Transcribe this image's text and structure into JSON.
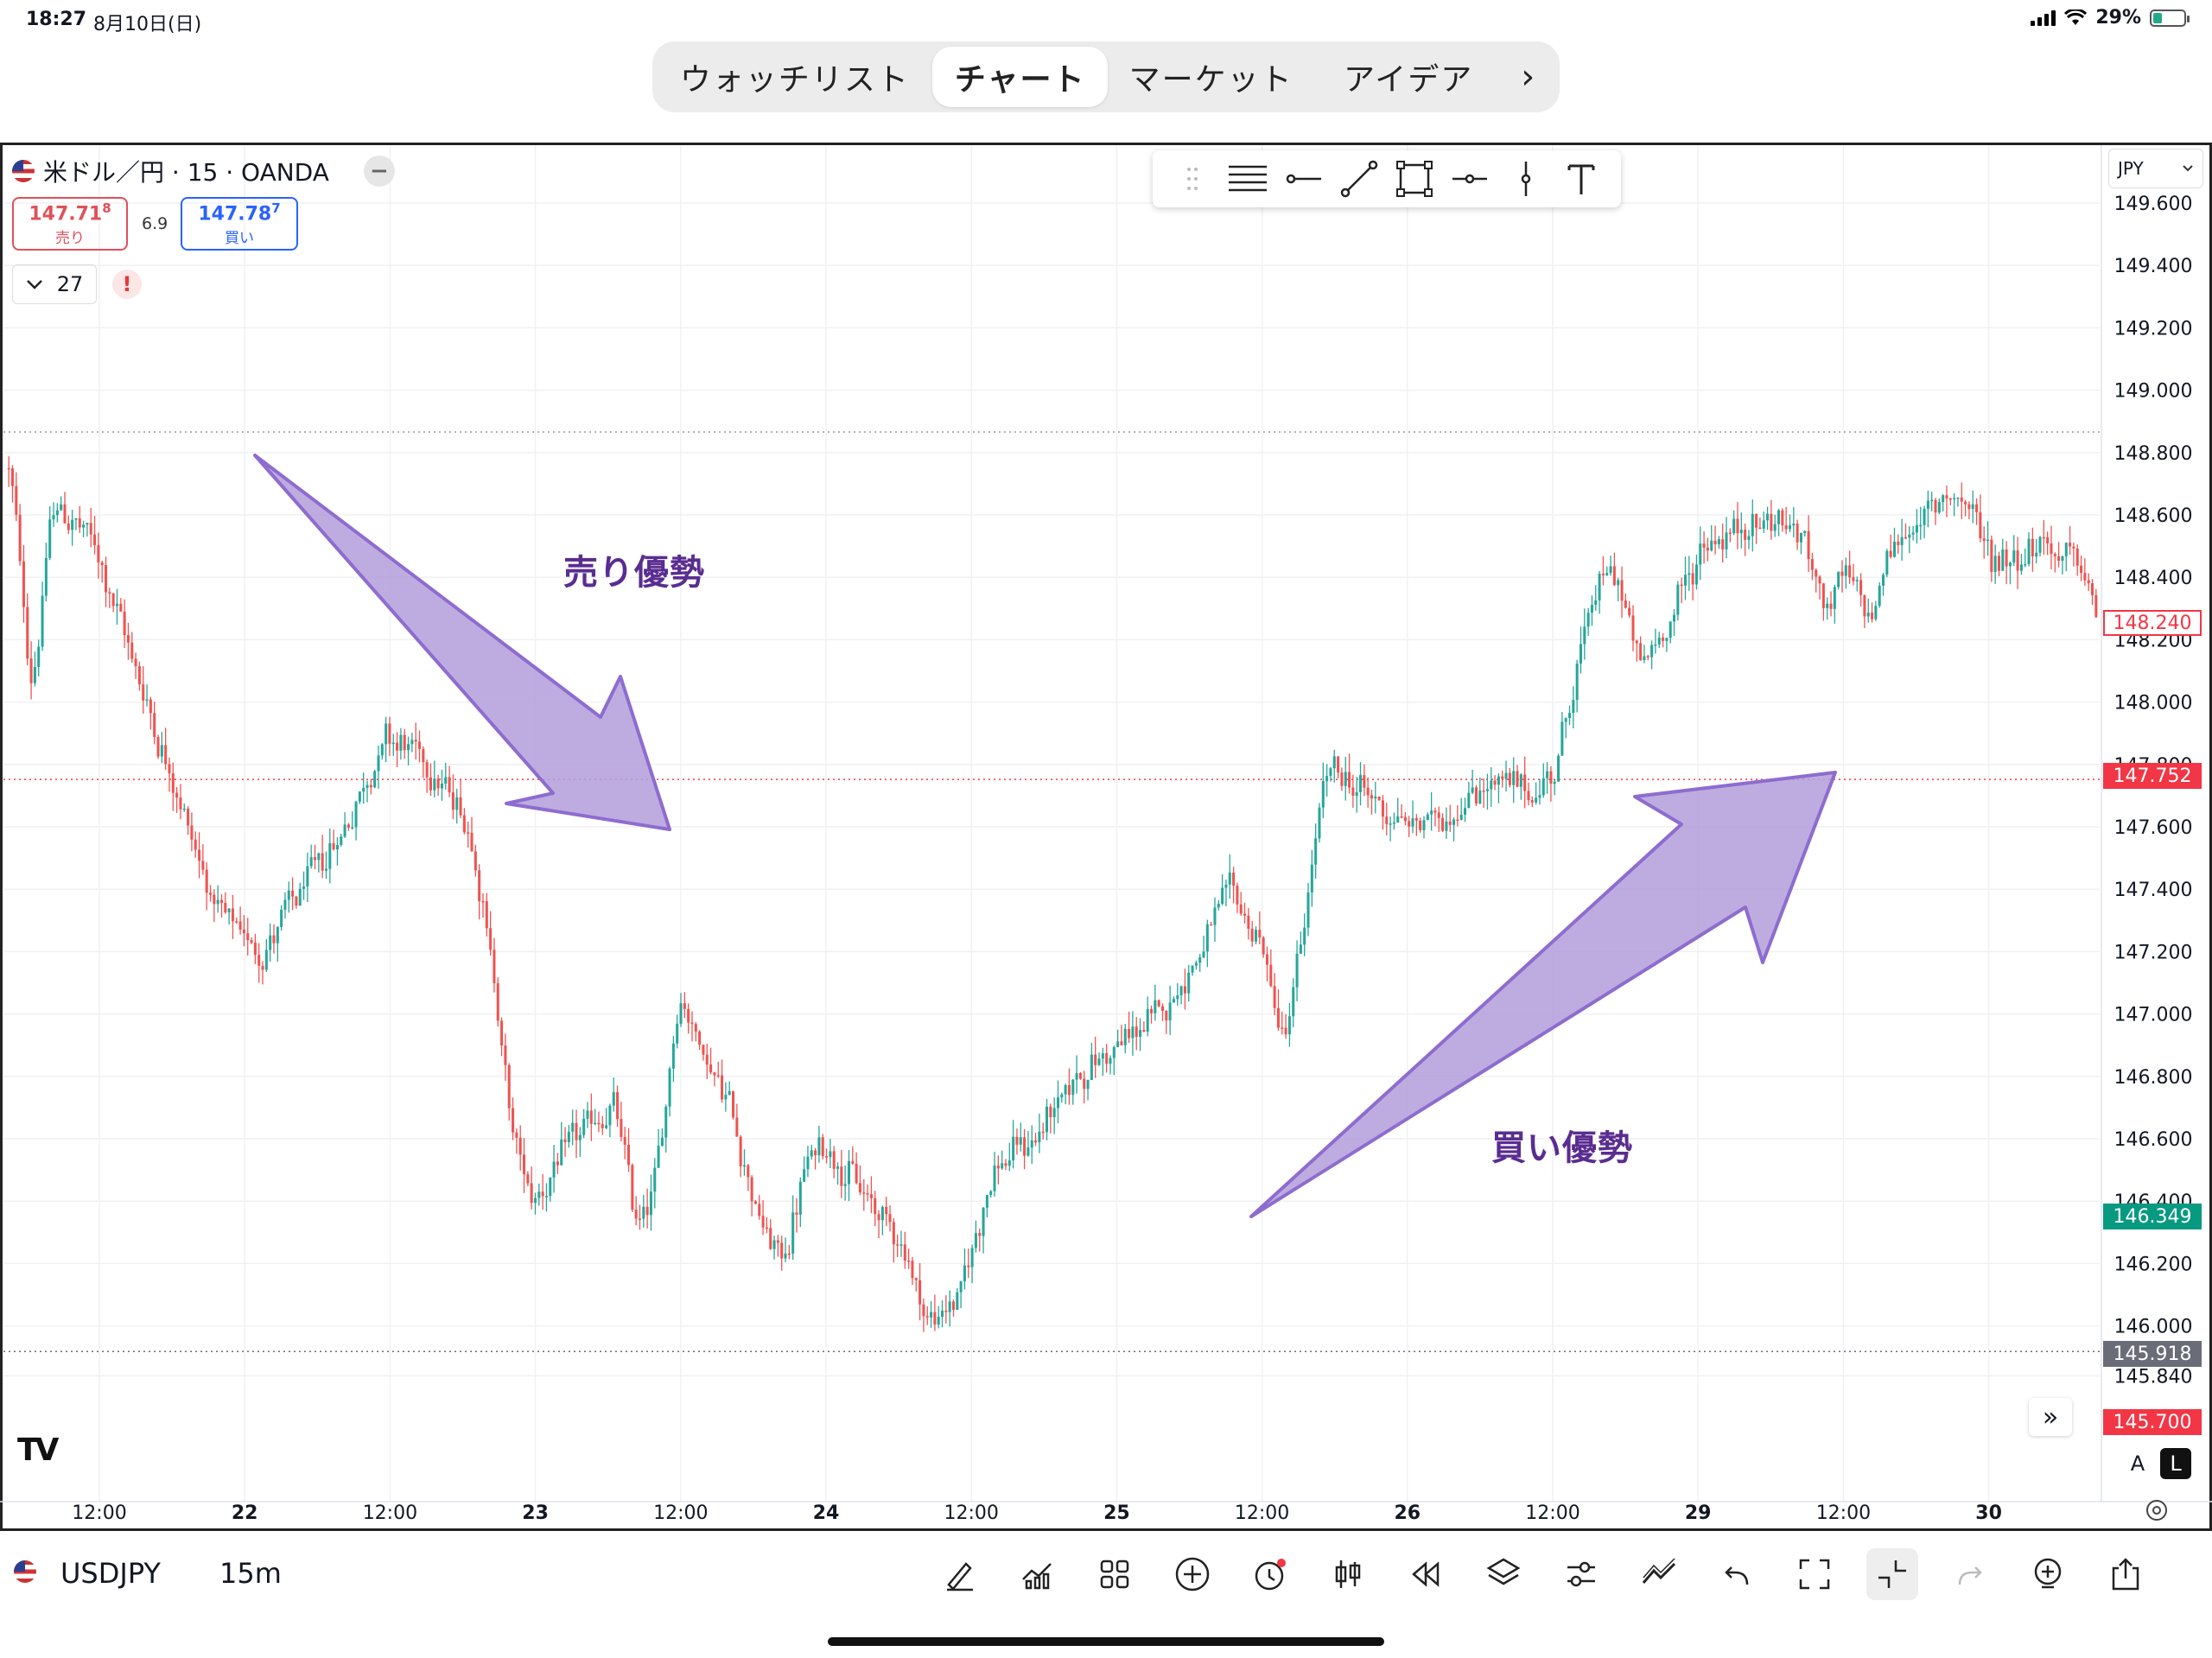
{
  "status_bar": {
    "time": "18:27",
    "date": "8月10日(日)",
    "battery": "29%",
    "battery_level": 0.29
  },
  "tabs": [
    {
      "label": "ウォッチリスト",
      "active": false
    },
    {
      "label": "チャート",
      "active": true
    },
    {
      "label": "マーケット",
      "active": false
    },
    {
      "label": "アイデア",
      "active": false
    }
  ],
  "legend": {
    "title": "米ドル／円 · 15 · OANDA"
  },
  "quote": {
    "sell_price": "147.71",
    "sell_price_pip": "8",
    "sell_label": "売り",
    "spread": "6.9",
    "buy_price": "147.78",
    "buy_price_pip": "7",
    "buy_label": "買い"
  },
  "indicators_count": "27",
  "warning": "!",
  "currency_select": "JPY",
  "annotations": {
    "sell": "売り優勢",
    "buy": "買い優勢"
  },
  "price_labels": {
    "last": "148.240",
    "line1": "147.752",
    "high_marker": "146.349",
    "low_line": "145.918",
    "bottom": "145.700"
  },
  "colors": {
    "up": "#26a69a",
    "down": "#ef5350",
    "arrow_fill": "#b39ddb",
    "arrow_stroke": "#8e6ccf",
    "line_red": "#f23645",
    "badge_green": "#089981",
    "badge_gray": "#6a6d78"
  },
  "chart_data": {
    "type": "candlestick",
    "y_ticks": [
      "149.600",
      "149.400",
      "149.200",
      "149.000",
      "148.800",
      "148.600",
      "148.400",
      "148.200",
      "148.000",
      "147.800",
      "147.600",
      "147.400",
      "147.200",
      "147.000",
      "146.800",
      "146.600",
      "146.400",
      "146.200",
      "146.000",
      "145.840"
    ],
    "y_range": [
      145.7,
      149.65
    ],
    "x_ticks": [
      {
        "label": "12:00",
        "bold": false
      },
      {
        "label": "22",
        "bold": true
      },
      {
        "label": "12:00",
        "bold": false
      },
      {
        "label": "23",
        "bold": true
      },
      {
        "label": "12:00",
        "bold": false
      },
      {
        "label": "24",
        "bold": true
      },
      {
        "label": "12:00",
        "bold": false
      },
      {
        "label": "25",
        "bold": true
      },
      {
        "label": "12:00",
        "bold": false
      },
      {
        "label": "26",
        "bold": true
      },
      {
        "label": "12:00",
        "bold": false
      },
      {
        "label": "29",
        "bold": true
      },
      {
        "label": "12:00",
        "bold": false
      },
      {
        "label": "30",
        "bold": true
      }
    ],
    "path_points": [
      [
        0,
        148.75
      ],
      [
        0.01,
        148.0
      ],
      [
        0.02,
        148.65
      ],
      [
        0.04,
        148.5
      ],
      [
        0.06,
        148.1
      ],
      [
        0.08,
        147.7
      ],
      [
        0.1,
        147.3
      ],
      [
        0.12,
        147.2
      ],
      [
        0.14,
        147.4
      ],
      [
        0.16,
        147.6
      ],
      [
        0.18,
        147.9
      ],
      [
        0.2,
        147.8
      ],
      [
        0.22,
        147.6
      ],
      [
        0.23,
        147.2
      ],
      [
        0.24,
        146.6
      ],
      [
        0.25,
        146.4
      ],
      [
        0.27,
        146.6
      ],
      [
        0.29,
        146.7
      ],
      [
        0.3,
        146.3
      ],
      [
        0.31,
        146.5
      ],
      [
        0.32,
        147.1
      ],
      [
        0.33,
        146.9
      ],
      [
        0.345,
        146.7
      ],
      [
        0.36,
        146.3
      ],
      [
        0.37,
        146.2
      ],
      [
        0.38,
        146.5
      ],
      [
        0.39,
        146.6
      ],
      [
        0.41,
        146.4
      ],
      [
        0.425,
        146.3
      ],
      [
        0.44,
        146.0
      ],
      [
        0.455,
        146.1
      ],
      [
        0.47,
        146.5
      ],
      [
        0.49,
        146.6
      ],
      [
        0.51,
        146.8
      ],
      [
        0.53,
        146.9
      ],
      [
        0.55,
        147.0
      ],
      [
        0.57,
        147.2
      ],
      [
        0.585,
        147.4
      ],
      [
        0.6,
        147.2
      ],
      [
        0.61,
        146.9
      ],
      [
        0.62,
        147.3
      ],
      [
        0.63,
        147.8
      ],
      [
        0.65,
        147.7
      ],
      [
        0.67,
        147.6
      ],
      [
        0.69,
        147.65
      ],
      [
        0.71,
        147.75
      ],
      [
        0.73,
        147.7
      ],
      [
        0.74,
        147.8
      ],
      [
        0.75,
        148.1
      ],
      [
        0.76,
        148.4
      ],
      [
        0.77,
        148.4
      ],
      [
        0.78,
        148.1
      ],
      [
        0.79,
        148.2
      ],
      [
        0.81,
        148.5
      ],
      [
        0.83,
        148.55
      ],
      [
        0.845,
        148.6
      ],
      [
        0.86,
        148.5
      ],
      [
        0.87,
        148.3
      ],
      [
        0.88,
        148.4
      ],
      [
        0.89,
        148.25
      ],
      [
        0.9,
        148.5
      ],
      [
        0.92,
        148.6
      ],
      [
        0.93,
        148.7
      ],
      [
        0.95,
        148.45
      ],
      [
        0.97,
        148.5
      ],
      [
        0.99,
        148.45
      ],
      [
        1.0,
        148.25
      ]
    ]
  }
}
